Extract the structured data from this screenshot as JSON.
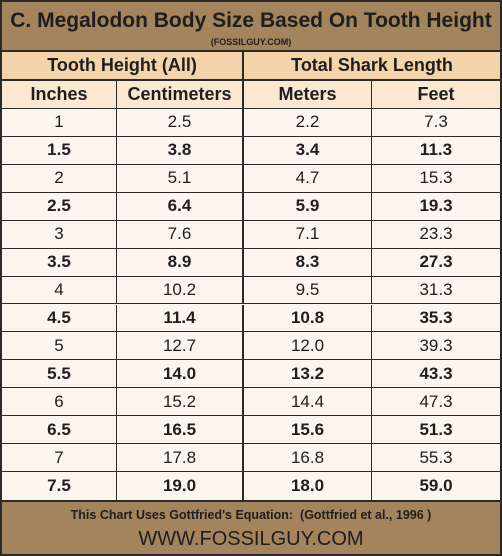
{
  "header": {
    "title": "C. Megalodon Body Size Based On Tooth Height",
    "subtitle": "(FOSSILGUY.COM)"
  },
  "table": {
    "groups": [
      "Tooth Height (All)",
      "Total Shark Length"
    ],
    "columns": [
      "Inches",
      "Centimeters",
      "Meters",
      "Feet"
    ],
    "rows": [
      [
        "1",
        "2.5",
        "2.2",
        "7.3"
      ],
      [
        "1.5",
        "3.8",
        "3.4",
        "11.3"
      ],
      [
        "2",
        "5.1",
        "4.7",
        "15.3"
      ],
      [
        "2.5",
        "6.4",
        "5.9",
        "19.3"
      ],
      [
        "3",
        "7.6",
        "7.1",
        "23.3"
      ],
      [
        "3.5",
        "8.9",
        "8.3",
        "27.3"
      ],
      [
        "4",
        "10.2",
        "9.5",
        "31.3"
      ],
      [
        "4.5",
        "11.4",
        "10.8",
        "35.3"
      ],
      [
        "5",
        "12.7",
        "12.0",
        "39.3"
      ],
      [
        "5.5",
        "14.0",
        "13.2",
        "43.3"
      ],
      [
        "6",
        "15.2",
        "14.4",
        "47.3"
      ],
      [
        "6.5",
        "16.5",
        "15.6",
        "51.3"
      ],
      [
        "7",
        "17.8",
        "16.8",
        "55.3"
      ],
      [
        "7.5",
        "19.0",
        "18.0",
        "59.0"
      ]
    ]
  },
  "footer": {
    "note": "This Chart Uses Gottfried's Equation:  (Gottfried et al., 1996 )",
    "url": "WWW.FOSSILGUY.COM"
  }
}
